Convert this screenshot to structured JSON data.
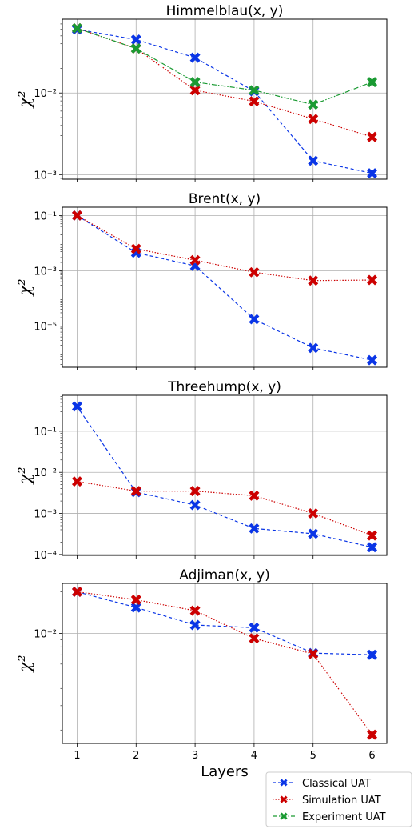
{
  "chart_data": [
    {
      "type": "line",
      "title": "Himmelblau(x, y)",
      "ylabel": "χ²",
      "yscale": "log",
      "ylim": [
        0.00088,
        0.08
      ],
      "yticks": [
        {
          "v": 0.001,
          "label": "10⁻³"
        },
        {
          "v": 0.01,
          "label": "10⁻²"
        }
      ],
      "x": [
        1,
        2,
        3,
        4,
        5,
        6
      ],
      "series": [
        {
          "name": "Classical UAT",
          "values": [
            0.06,
            0.045,
            0.027,
            0.0105,
            0.00148,
            0.00104
          ]
        },
        {
          "name": "Simulation UAT",
          "values": [
            0.062,
            0.035,
            0.0108,
            0.0079,
            0.0048,
            0.0029
          ]
        },
        {
          "name": "Experiment UAT",
          "values": [
            0.062,
            0.035,
            0.0136,
            0.0108,
            0.0072,
            0.0136
          ]
        }
      ]
    },
    {
      "type": "line",
      "title": "Brent(x, y)",
      "ylabel": "χ²",
      "yscale": "log",
      "ylim": [
        3.2e-07,
        0.2
      ],
      "yticks": [
        {
          "v": 1e-05,
          "label": "10⁻⁵"
        },
        {
          "v": 0.001,
          "label": "10⁻³"
        },
        {
          "v": 0.1,
          "label": "10⁻¹"
        }
      ],
      "x": [
        1,
        2,
        3,
        4,
        5,
        6
      ],
      "series": [
        {
          "name": "Classical UAT",
          "values": [
            0.1,
            0.0045,
            0.0015,
            1.75e-05,
            1.6e-06,
            5.8e-07
          ]
        },
        {
          "name": "Simulation UAT",
          "values": [
            0.1,
            0.0062,
            0.0024,
            0.00088,
            0.00044,
            0.00046
          ]
        }
      ]
    },
    {
      "type": "line",
      "title": "Threehump(x, y)",
      "ylabel": "χ²",
      "yscale": "log",
      "ylim": [
        9.5e-05,
        0.75
      ],
      "yticks": [
        {
          "v": 0.0001,
          "label": "10⁻⁴"
        },
        {
          "v": 0.001,
          "label": "10⁻³"
        },
        {
          "v": 0.01,
          "label": "10⁻²"
        },
        {
          "v": 0.1,
          "label": "10⁻¹"
        }
      ],
      "x": [
        1,
        2,
        3,
        4,
        5,
        6
      ],
      "series": [
        {
          "name": "Classical UAT",
          "values": [
            0.4,
            0.0033,
            0.0016,
            0.00043,
            0.00032,
            0.00015
          ]
        },
        {
          "name": "Simulation UAT",
          "values": [
            0.006,
            0.0035,
            0.0035,
            0.0027,
            0.001,
            0.00029
          ]
        }
      ]
    },
    {
      "type": "line",
      "title": "Adjiman(x, y)",
      "ylabel": "χ²",
      "yscale": "log",
      "ylim": [
        0.0016,
        0.023
      ],
      "yticks": [
        {
          "v": 0.01,
          "label": "10⁻²"
        }
      ],
      "x": [
        1,
        2,
        3,
        4,
        5,
        6
      ],
      "xlabel": "Layers",
      "xticks": [
        "1",
        "2",
        "3",
        "4",
        "5",
        "6"
      ],
      "series": [
        {
          "name": "Classical UAT",
          "values": [
            0.02,
            0.0154,
            0.0115,
            0.011,
            0.0072,
            0.007
          ]
        },
        {
          "name": "Simulation UAT",
          "values": [
            0.02,
            0.0175,
            0.0146,
            0.0092,
            0.0071,
            0.00185
          ]
        }
      ]
    }
  ],
  "legend": {
    "position": "bottom-right",
    "entries": [
      {
        "name": "Classical UAT",
        "color": "#0a35e6",
        "dash": "4,3"
      },
      {
        "name": "Simulation UAT",
        "color": "#cc0000",
        "dash": "1.5,2"
      },
      {
        "name": "Experiment UAT",
        "color": "#1a9a32",
        "dash": "6,2,1.5,2"
      }
    ]
  },
  "styles": {
    "Classical UAT": {
      "color": "#0a35e6",
      "dash": "4,3"
    },
    "Simulation UAT": {
      "color": "#cc0000",
      "dash": "1.5,2"
    },
    "Experiment UAT": {
      "color": "#1a9a32",
      "dash": "6,2,1.5,2"
    }
  },
  "grid": true
}
